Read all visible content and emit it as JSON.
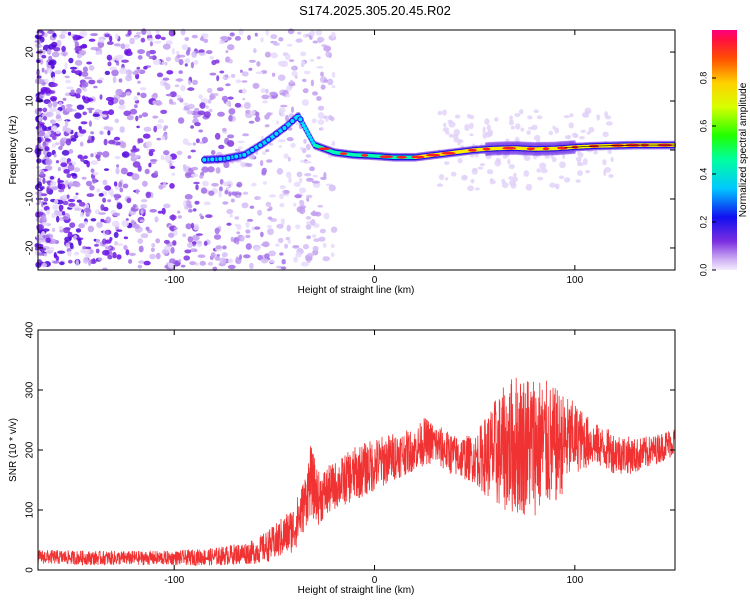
{
  "title": "S174.2025.305.20.45.R02",
  "chart_data": [
    {
      "type": "heatmap",
      "name": "spectrogram",
      "xlabel": "Height of straight line (km)",
      "ylabel": "Frequency (Hz)",
      "xlim": [
        -168,
        150
      ],
      "ylim": [
        -24.5,
        24.5
      ],
      "xticks": [
        -100,
        0,
        100
      ],
      "xtick_labels": [
        "-100",
        "0",
        "100"
      ],
      "yticks": [
        -20,
        -10,
        0,
        10,
        20
      ],
      "ytick_labels": [
        "-20",
        "-10",
        "0",
        "10",
        "20"
      ],
      "colorbar": {
        "label": "Normalized spectral amplitude",
        "range": [
          0,
          1
        ],
        "ticks": [
          0.0,
          0.2,
          0.4,
          0.6,
          0.8
        ],
        "tick_labels": [
          "0.0",
          "0.2",
          "0.4",
          "0.6",
          "0.8"
        ]
      },
      "trend_line": {
        "x": [
          -85,
          -75,
          -65,
          -55,
          -45,
          -38,
          -30,
          -20,
          -10,
          0,
          10,
          20,
          30,
          40,
          50,
          60,
          70,
          80,
          90,
          100,
          110,
          120,
          130,
          140,
          150
        ],
        "y": [
          -2.0,
          -1.8,
          -1.0,
          1.5,
          4.5,
          7.0,
          1.0,
          -0.5,
          -1.0,
          -1.2,
          -1.5,
          -1.5,
          -1.0,
          -0.5,
          0.0,
          0.3,
          0.4,
          0.2,
          0.3,
          0.6,
          0.8,
          0.9,
          1.0,
          1.0,
          1.0
        ]
      },
      "noise_region_x": [
        -168,
        -30
      ]
    },
    {
      "type": "line",
      "name": "snr",
      "xlabel": "Height of straight line (km)",
      "ylabel": "SNR (10 * v/v)",
      "xlim": [
        -168,
        150
      ],
      "ylim": [
        0,
        400
      ],
      "xticks": [
        -100,
        0,
        100
      ],
      "xtick_labels": [
        "-100",
        "0",
        "100"
      ],
      "yticks": [
        0,
        100,
        200,
        300,
        400
      ],
      "ytick_labels": [
        "0",
        "100",
        "200",
        "300",
        "400"
      ],
      "color": "#f03232",
      "envelope": {
        "x": [
          -168,
          -140,
          -100,
          -80,
          -60,
          -50,
          -40,
          -35,
          -32,
          -28,
          -20,
          -10,
          0,
          10,
          20,
          25,
          30,
          40,
          50,
          60,
          70,
          80,
          90,
          100,
          110,
          120,
          130,
          140,
          150
        ],
        "mean": [
          22,
          20,
          20,
          22,
          30,
          45,
          70,
          110,
          150,
          120,
          140,
          160,
          175,
          190,
          200,
          215,
          210,
          190,
          185,
          195,
          210,
          210,
          205,
          220,
          210,
          195,
          190,
          200,
          215
        ],
        "amplitude": [
          12,
          12,
          12,
          15,
          20,
          30,
          40,
          45,
          60,
          45,
          40,
          45,
          45,
          40,
          35,
          40,
          35,
          35,
          40,
          90,
          120,
          120,
          100,
          60,
          35,
          35,
          30,
          25,
          25
        ]
      }
    }
  ]
}
